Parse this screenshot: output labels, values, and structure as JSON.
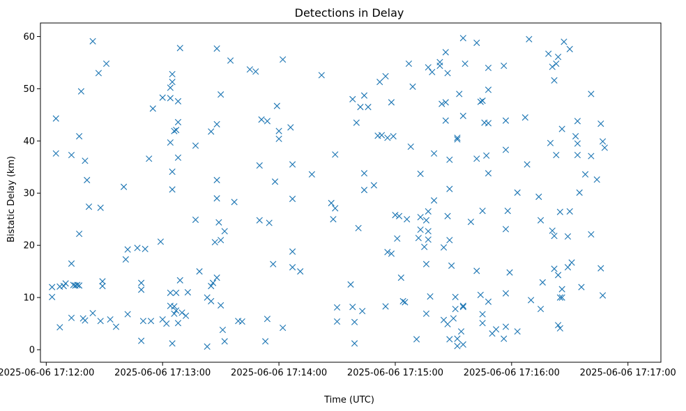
{
  "chart_data": {
    "type": "scatter",
    "title": "Detections in Delay",
    "xlabel": "Time (UTC)",
    "ylabel": "Bistatic Delay (km)",
    "marker": "x",
    "color": "#1f77b4",
    "grid": false,
    "xlim": [
      "2025-06-06 17:11:57",
      "2025-06-06 17:17:17"
    ],
    "ylim": [
      -2.4,
      62.6
    ],
    "x_ticks": [
      "2025-06-06 17:12:00",
      "2025-06-06 17:13:00",
      "2025-06-06 17:14:00",
      "2025-06-06 17:15:00",
      "2025-06-06 17:16:00",
      "2025-06-06 17:17:00"
    ],
    "y_ticks": [
      0,
      10,
      20,
      30,
      40,
      50,
      60
    ],
    "points": [
      [
        "2025-06-06 17:12:03",
        10.1
      ],
      [
        "2025-06-06 17:12:03",
        12.0
      ],
      [
        "2025-06-06 17:12:05",
        44.3
      ],
      [
        "2025-06-06 17:12:05",
        37.6
      ],
      [
        "2025-06-06 17:12:07",
        12.1
      ],
      [
        "2025-06-06 17:12:07",
        4.3
      ],
      [
        "2025-06-06 17:12:09",
        12.2
      ],
      [
        "2025-06-06 17:12:10",
        12.7
      ],
      [
        "2025-06-06 17:12:13",
        16.5
      ],
      [
        "2025-06-06 17:12:13",
        6.1
      ],
      [
        "2025-06-06 17:12:13",
        37.3
      ],
      [
        "2025-06-06 17:12:14",
        12.4
      ],
      [
        "2025-06-06 17:12:15",
        12.3
      ],
      [
        "2025-06-06 17:12:16",
        12.4
      ],
      [
        "2025-06-06 17:12:17",
        12.3
      ],
      [
        "2025-06-06 17:12:17",
        22.2
      ],
      [
        "2025-06-06 17:12:17",
        40.9
      ],
      [
        "2025-06-06 17:12:18",
        49.5
      ],
      [
        "2025-06-06 17:12:19",
        6.0
      ],
      [
        "2025-06-06 17:12:20",
        5.6
      ],
      [
        "2025-06-06 17:12:20",
        36.2
      ],
      [
        "2025-06-06 17:12:21",
        32.5
      ],
      [
        "2025-06-06 17:12:22",
        27.4
      ],
      [
        "2025-06-06 17:12:24",
        7.0
      ],
      [
        "2025-06-06 17:12:24",
        59.1
      ],
      [
        "2025-06-06 17:12:27",
        53.0
      ],
      [
        "2025-06-06 17:12:28",
        5.5
      ],
      [
        "2025-06-06 17:12:28",
        27.2
      ],
      [
        "2025-06-06 17:12:29",
        13.1
      ],
      [
        "2025-06-06 17:12:29",
        12.2
      ],
      [
        "2025-06-06 17:12:31",
        54.8
      ],
      [
        "2025-06-06 17:12:33",
        5.8
      ],
      [
        "2025-06-06 17:12:36",
        4.4
      ],
      [
        "2025-06-06 17:12:40",
        31.2
      ],
      [
        "2025-06-06 17:12:41",
        17.3
      ],
      [
        "2025-06-06 17:12:42",
        19.2
      ],
      [
        "2025-06-06 17:12:42",
        6.8
      ],
      [
        "2025-06-06 17:12:47",
        19.5
      ],
      [
        "2025-06-06 17:12:49",
        12.8
      ],
      [
        "2025-06-06 17:12:49",
        11.5
      ],
      [
        "2025-06-06 17:12:49",
        1.7
      ],
      [
        "2025-06-06 17:12:50",
        5.5
      ],
      [
        "2025-06-06 17:12:51",
        19.3
      ],
      [
        "2025-06-06 17:12:53",
        36.6
      ],
      [
        "2025-06-06 17:12:54",
        5.5
      ],
      [
        "2025-06-06 17:12:55",
        46.2
      ],
      [
        "2025-06-06 17:12:59",
        20.7
      ],
      [
        "2025-06-06 17:13:00",
        5.8
      ],
      [
        "2025-06-06 17:13:00",
        48.3
      ],
      [
        "2025-06-06 17:13:02",
        5.0
      ],
      [
        "2025-06-06 17:13:04",
        39.7
      ],
      [
        "2025-06-06 17:13:04",
        48.2
      ],
      [
        "2025-06-06 17:13:04",
        50.2
      ],
      [
        "2025-06-06 17:13:05",
        30.7
      ],
      [
        "2025-06-06 17:13:05",
        51.3
      ],
      [
        "2025-06-06 17:13:05",
        52.8
      ],
      [
        "2025-06-06 17:13:05",
        34.1
      ],
      [
        "2025-06-06 17:13:04",
        10.9
      ],
      [
        "2025-06-06 17:13:04",
        8.4
      ],
      [
        "2025-06-06 17:13:05",
        1.2
      ],
      [
        "2025-06-06 17:13:06",
        8.3
      ],
      [
        "2025-06-06 17:13:06",
        6.9
      ],
      [
        "2025-06-06 17:13:06",
        41.9
      ],
      [
        "2025-06-06 17:13:07",
        10.9
      ],
      [
        "2025-06-06 17:13:07",
        42.1
      ],
      [
        "2025-06-06 17:13:07",
        7.5
      ],
      [
        "2025-06-06 17:13:08",
        47.6
      ],
      [
        "2025-06-06 17:13:08",
        43.6
      ],
      [
        "2025-06-06 17:13:08",
        36.8
      ],
      [
        "2025-06-06 17:13:08",
        5.1
      ],
      [
        "2025-06-06 17:13:09",
        13.3
      ],
      [
        "2025-06-06 17:13:09",
        57.8
      ],
      [
        "2025-06-06 17:13:10",
        7.1
      ],
      [
        "2025-06-06 17:13:12",
        6.5
      ],
      [
        "2025-06-06 17:13:13",
        11.0
      ],
      [
        "2025-06-06 17:13:17",
        39.1
      ],
      [
        "2025-06-06 17:13:17",
        24.9
      ],
      [
        "2025-06-06 17:13:19",
        15.0
      ],
      [
        "2025-06-06 17:13:23",
        0.6
      ],
      [
        "2025-06-06 17:13:23",
        10.0
      ],
      [
        "2025-06-06 17:13:25",
        9.3
      ],
      [
        "2025-06-06 17:13:25",
        12.2
      ],
      [
        "2025-06-06 17:13:25",
        41.8
      ],
      [
        "2025-06-06 17:13:26",
        12.8
      ],
      [
        "2025-06-06 17:13:27",
        20.6
      ],
      [
        "2025-06-06 17:13:28",
        29.0
      ],
      [
        "2025-06-06 17:13:28",
        32.5
      ],
      [
        "2025-06-06 17:13:28",
        43.2
      ],
      [
        "2025-06-06 17:13:28",
        57.7
      ],
      [
        "2025-06-06 17:13:28",
        13.8
      ],
      [
        "2025-06-06 17:13:29",
        24.4
      ],
      [
        "2025-06-06 17:13:30",
        21.0
      ],
      [
        "2025-06-06 17:13:30",
        8.5
      ],
      [
        "2025-06-06 17:13:30",
        48.9
      ],
      [
        "2025-06-06 17:13:31",
        3.8
      ],
      [
        "2025-06-06 17:13:32",
        22.7
      ],
      [
        "2025-06-06 17:13:32",
        1.6
      ],
      [
        "2025-06-06 17:13:35",
        55.4
      ],
      [
        "2025-06-06 17:13:37",
        28.3
      ],
      [
        "2025-06-06 17:13:39",
        5.5
      ],
      [
        "2025-06-06 17:13:41",
        5.4
      ],
      [
        "2025-06-06 17:13:45",
        53.7
      ],
      [
        "2025-06-06 17:13:48",
        53.3
      ],
      [
        "2025-06-06 17:13:50",
        24.8
      ],
      [
        "2025-06-06 17:13:50",
        35.3
      ],
      [
        "2025-06-06 17:13:51",
        44.1
      ],
      [
        "2025-06-06 17:13:53",
        1.6
      ],
      [
        "2025-06-06 17:13:54",
        5.9
      ],
      [
        "2025-06-06 17:13:54",
        43.8
      ],
      [
        "2025-06-06 17:13:55",
        24.3
      ],
      [
        "2025-06-06 17:13:57",
        16.4
      ],
      [
        "2025-06-06 17:13:58",
        32.2
      ],
      [
        "2025-06-06 17:13:59",
        46.7
      ],
      [
        "2025-06-06 17:14:00",
        40.4
      ],
      [
        "2025-06-06 17:14:00",
        41.9
      ],
      [
        "2025-06-06 17:14:02",
        4.2
      ],
      [
        "2025-06-06 17:14:02",
        55.6
      ],
      [
        "2025-06-06 17:14:06",
        42.6
      ],
      [
        "2025-06-06 17:14:07",
        35.5
      ],
      [
        "2025-06-06 17:14:07",
        18.8
      ],
      [
        "2025-06-06 17:14:07",
        15.8
      ],
      [
        "2025-06-06 17:14:07",
        28.9
      ],
      [
        "2025-06-06 17:14:11",
        15.0
      ],
      [
        "2025-06-06 17:14:17",
        33.6
      ],
      [
        "2025-06-06 17:14:22",
        52.6
      ],
      [
        "2025-06-06 17:14:27",
        28.1
      ],
      [
        "2025-06-06 17:14:28",
        25.0
      ],
      [
        "2025-06-06 17:14:29",
        27.1
      ],
      [
        "2025-06-06 17:14:29",
        37.4
      ],
      [
        "2025-06-06 17:14:30",
        8.1
      ],
      [
        "2025-06-06 17:14:30",
        5.4
      ],
      [
        "2025-06-06 17:14:37",
        12.5
      ],
      [
        "2025-06-06 17:14:38",
        8.2
      ],
      [
        "2025-06-06 17:14:38",
        48.0
      ],
      [
        "2025-06-06 17:14:39",
        1.2
      ],
      [
        "2025-06-06 17:14:39",
        5.3
      ],
      [
        "2025-06-06 17:14:40",
        43.5
      ],
      [
        "2025-06-06 17:14:41",
        23.3
      ],
      [
        "2025-06-06 17:14:42",
        46.5
      ],
      [
        "2025-06-06 17:14:43",
        7.4
      ],
      [
        "2025-06-06 17:14:44",
        48.7
      ],
      [
        "2025-06-06 17:14:44",
        33.8
      ],
      [
        "2025-06-06 17:14:44",
        30.6
      ],
      [
        "2025-06-06 17:14:46",
        46.5
      ],
      [
        "2025-06-06 17:14:49",
        31.5
      ],
      [
        "2025-06-06 17:14:51",
        41.0
      ],
      [
        "2025-06-06 17:14:52",
        51.3
      ],
      [
        "2025-06-06 17:14:53",
        41.1
      ],
      [
        "2025-06-06 17:14:55",
        52.4
      ],
      [
        "2025-06-06 17:14:55",
        8.3
      ],
      [
        "2025-06-06 17:14:56",
        40.6
      ],
      [
        "2025-06-06 17:14:56",
        18.7
      ],
      [
        "2025-06-06 17:14:58",
        18.4
      ],
      [
        "2025-06-06 17:14:58",
        47.4
      ],
      [
        "2025-06-06 17:14:59",
        40.9
      ],
      [
        "2025-06-06 17:15:00",
        25.8
      ],
      [
        "2025-06-06 17:15:01",
        21.3
      ],
      [
        "2025-06-06 17:15:02",
        25.6
      ],
      [
        "2025-06-06 17:15:03",
        13.8
      ],
      [
        "2025-06-06 17:15:04",
        9.3
      ],
      [
        "2025-06-06 17:15:05",
        9.1
      ],
      [
        "2025-06-06 17:15:06",
        25.0
      ],
      [
        "2025-06-06 17:15:07",
        54.8
      ],
      [
        "2025-06-06 17:15:08",
        38.9
      ],
      [
        "2025-06-06 17:15:09",
        50.4
      ],
      [
        "2025-06-06 17:15:11",
        2.0
      ],
      [
        "2025-06-06 17:15:12",
        21.4
      ],
      [
        "2025-06-06 17:15:13",
        25.4
      ],
      [
        "2025-06-06 17:15:13",
        33.7
      ],
      [
        "2025-06-06 17:15:13",
        23.0
      ],
      [
        "2025-06-06 17:15:15",
        19.7
      ],
      [
        "2025-06-06 17:15:16",
        16.4
      ],
      [
        "2025-06-06 17:15:16",
        6.9
      ],
      [
        "2025-06-06 17:15:16",
        24.8
      ],
      [
        "2025-06-06 17:15:17",
        26.5
      ],
      [
        "2025-06-06 17:15:17",
        54.1
      ],
      [
        "2025-06-06 17:15:17",
        22.7
      ],
      [
        "2025-06-06 17:15:17",
        21.1
      ],
      [
        "2025-06-06 17:15:18",
        10.2
      ],
      [
        "2025-06-06 17:15:19",
        53.2
      ],
      [
        "2025-06-06 17:15:20",
        28.6
      ],
      [
        "2025-06-06 17:15:20",
        37.6
      ],
      [
        "2025-06-06 17:15:23",
        54.4
      ],
      [
        "2025-06-06 17:15:23",
        55.1
      ],
      [
        "2025-06-06 17:15:24",
        47.1
      ],
      [
        "2025-06-06 17:15:25",
        19.6
      ],
      [
        "2025-06-06 17:15:25",
        5.7
      ],
      [
        "2025-06-06 17:15:26",
        47.4
      ],
      [
        "2025-06-06 17:15:26",
        57.0
      ],
      [
        "2025-06-06 17:15:26",
        43.9
      ],
      [
        "2025-06-06 17:15:27",
        25.6
      ],
      [
        "2025-06-06 17:15:27",
        4.9
      ],
      [
        "2025-06-06 17:15:27",
        53.0
      ],
      [
        "2025-06-06 17:15:28",
        21.0
      ],
      [
        "2025-06-06 17:15:28",
        2.0
      ],
      [
        "2025-06-06 17:15:28",
        36.4
      ],
      [
        "2025-06-06 17:15:28",
        30.8
      ],
      [
        "2025-06-06 17:15:29",
        16.1
      ],
      [
        "2025-06-06 17:15:30",
        6.0
      ],
      [
        "2025-06-06 17:15:31",
        10.1
      ],
      [
        "2025-06-06 17:15:31",
        7.8
      ],
      [
        "2025-06-06 17:15:32",
        0.7
      ],
      [
        "2025-06-06 17:15:32",
        40.6
      ],
      [
        "2025-06-06 17:15:32",
        40.3
      ],
      [
        "2025-06-06 17:15:32",
        2.1
      ],
      [
        "2025-06-06 17:15:33",
        49.0
      ],
      [
        "2025-06-06 17:15:34",
        3.5
      ],
      [
        "2025-06-06 17:15:35",
        59.7
      ],
      [
        "2025-06-06 17:15:35",
        44.8
      ],
      [
        "2025-06-06 17:15:35",
        8.2
      ],
      [
        "2025-06-06 17:15:35",
        8.4
      ],
      [
        "2025-06-06 17:15:35",
        1.0
      ],
      [
        "2025-06-06 17:15:36",
        54.8
      ],
      [
        "2025-06-06 17:15:39",
        24.5
      ],
      [
        "2025-06-06 17:15:42",
        15.1
      ],
      [
        "2025-06-06 17:15:42",
        36.6
      ],
      [
        "2025-06-06 17:15:42",
        58.8
      ],
      [
        "2025-06-06 17:15:44",
        47.5
      ],
      [
        "2025-06-06 17:15:44",
        10.5
      ],
      [
        "2025-06-06 17:15:45",
        47.7
      ],
      [
        "2025-06-06 17:15:45",
        26.6
      ],
      [
        "2025-06-06 17:15:45",
        6.8
      ],
      [
        "2025-06-06 17:15:45",
        5.1
      ],
      [
        "2025-06-06 17:15:46",
        43.5
      ],
      [
        "2025-06-06 17:15:47",
        37.2
      ],
      [
        "2025-06-06 17:15:48",
        43.4
      ],
      [
        "2025-06-06 17:15:48",
        54.0
      ],
      [
        "2025-06-06 17:15:48",
        49.8
      ],
      [
        "2025-06-06 17:15:48",
        33.8
      ],
      [
        "2025-06-06 17:15:48",
        9.2
      ],
      [
        "2025-06-06 17:15:50",
        3.1
      ],
      [
        "2025-06-06 17:15:52",
        3.9
      ],
      [
        "2025-06-06 17:15:56",
        54.4
      ],
      [
        "2025-06-06 17:15:56",
        2.1
      ],
      [
        "2025-06-06 17:15:57",
        43.9
      ],
      [
        "2025-06-06 17:15:57",
        38.3
      ],
      [
        "2025-06-06 17:15:57",
        23.1
      ],
      [
        "2025-06-06 17:15:57",
        10.8
      ],
      [
        "2025-06-06 17:15:57",
        4.4
      ],
      [
        "2025-06-06 17:15:58",
        26.6
      ],
      [
        "2025-06-06 17:15:59",
        14.8
      ],
      [
        "2025-06-06 17:16:03",
        30.1
      ],
      [
        "2025-06-06 17:16:03",
        3.5
      ],
      [
        "2025-06-06 17:16:07",
        44.5
      ],
      [
        "2025-06-06 17:16:08",
        35.5
      ],
      [
        "2025-06-06 17:16:09",
        59.5
      ],
      [
        "2025-06-06 17:16:10",
        9.5
      ],
      [
        "2025-06-06 17:16:14",
        29.3
      ],
      [
        "2025-06-06 17:16:15",
        24.8
      ],
      [
        "2025-06-06 17:16:15",
        7.8
      ],
      [
        "2025-06-06 17:16:16",
        12.9
      ],
      [
        "2025-06-06 17:16:19",
        56.7
      ],
      [
        "2025-06-06 17:16:20",
        39.6
      ],
      [
        "2025-06-06 17:16:21",
        22.8
      ],
      [
        "2025-06-06 17:16:21",
        54.2
      ],
      [
        "2025-06-06 17:16:22",
        51.6
      ],
      [
        "2025-06-06 17:16:22",
        21.8
      ],
      [
        "2025-06-06 17:16:22",
        15.5
      ],
      [
        "2025-06-06 17:16:23",
        54.8
      ],
      [
        "2025-06-06 17:16:23",
        37.3
      ],
      [
        "2025-06-06 17:16:24",
        56.1
      ],
      [
        "2025-06-06 17:16:24",
        14.3
      ],
      [
        "2025-06-06 17:16:24",
        4.7
      ],
      [
        "2025-06-06 17:16:25",
        10.0
      ],
      [
        "2025-06-06 17:16:25",
        26.4
      ],
      [
        "2025-06-06 17:16:25",
        4.1
      ],
      [
        "2025-06-06 17:16:26",
        42.3
      ],
      [
        "2025-06-06 17:16:26",
        11.6
      ],
      [
        "2025-06-06 17:16:26",
        10.0
      ],
      [
        "2025-06-06 17:16:27",
        59.0
      ],
      [
        "2025-06-06 17:16:29",
        21.7
      ],
      [
        "2025-06-06 17:16:29",
        15.8
      ],
      [
        "2025-06-06 17:16:30",
        26.5
      ],
      [
        "2025-06-06 17:16:30",
        57.6
      ],
      [
        "2025-06-06 17:16:31",
        16.7
      ],
      [
        "2025-06-06 17:16:33",
        40.9
      ],
      [
        "2025-06-06 17:16:34",
        43.8
      ],
      [
        "2025-06-06 17:16:34",
        39.5
      ],
      [
        "2025-06-06 17:16:34",
        37.3
      ],
      [
        "2025-06-06 17:16:35",
        30.1
      ],
      [
        "2025-06-06 17:16:36",
        12.0
      ],
      [
        "2025-06-06 17:16:38",
        33.6
      ],
      [
        "2025-06-06 17:16:41",
        37.1
      ],
      [
        "2025-06-06 17:16:41",
        49.0
      ],
      [
        "2025-06-06 17:16:41",
        22.1
      ],
      [
        "2025-06-06 17:16:44",
        32.6
      ],
      [
        "2025-06-06 17:16:46",
        43.3
      ],
      [
        "2025-06-06 17:16:46",
        15.6
      ],
      [
        "2025-06-06 17:16:47",
        39.9
      ],
      [
        "2025-06-06 17:16:47",
        10.4
      ],
      [
        "2025-06-06 17:16:48",
        38.7
      ]
    ]
  }
}
